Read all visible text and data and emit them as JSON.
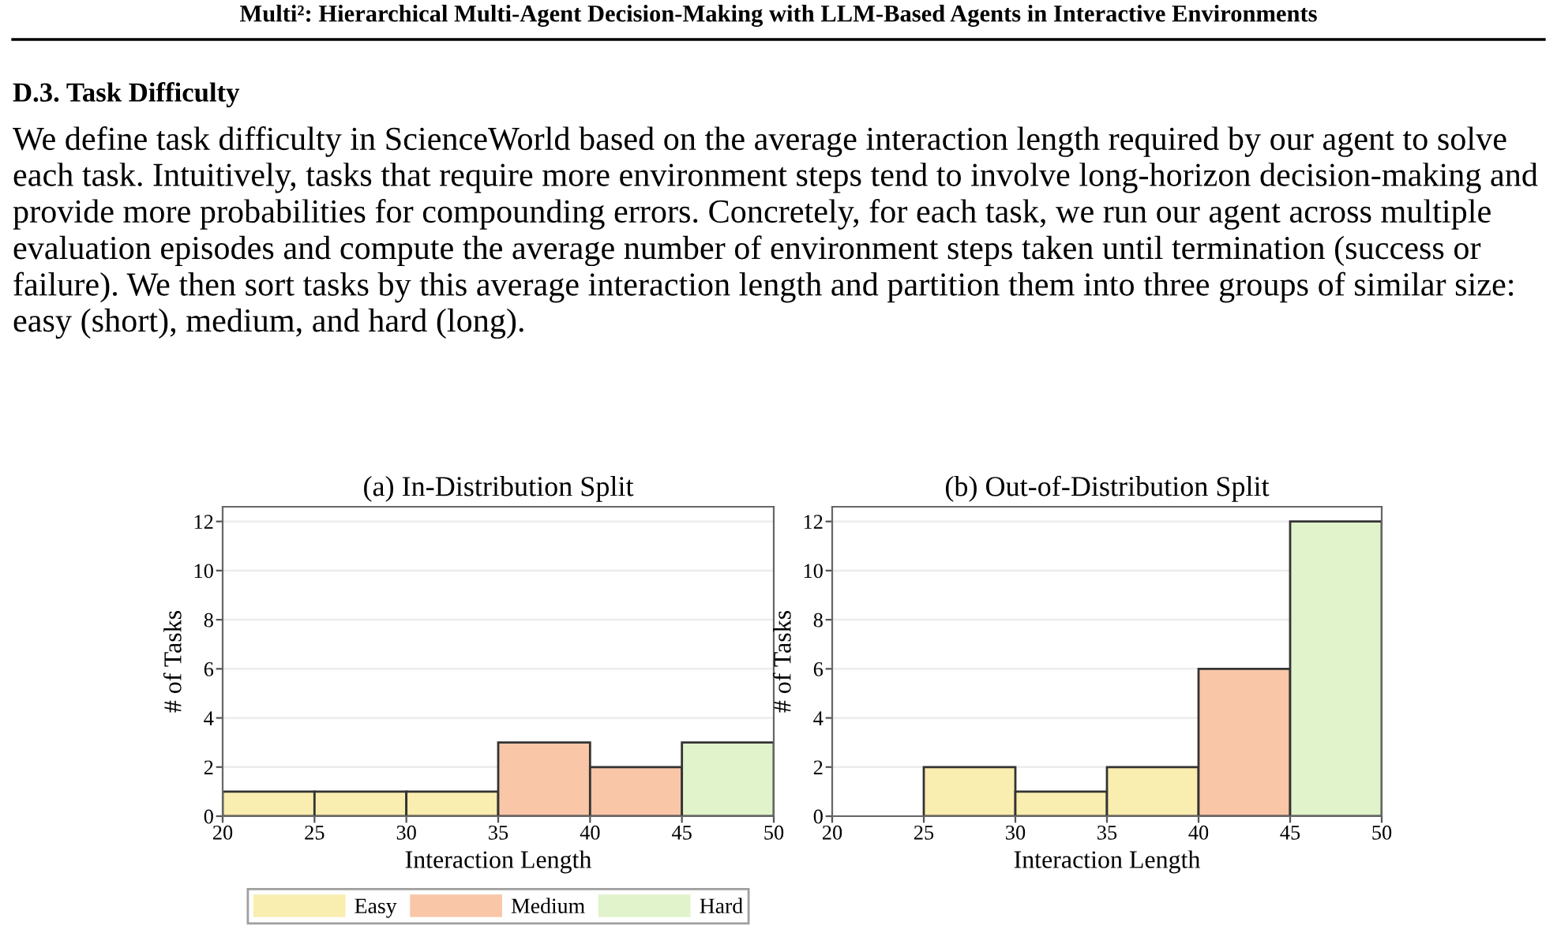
{
  "chart_data": [
    {
      "type": "histogram",
      "title": "(a) In-Distribution Split",
      "xlabel": "Interaction Length",
      "ylabel": "# of Tasks",
      "annotations": [
        "Multi²: Hierarchical Multi-Agent Decision-Making with LLM-Based Agents in Interactive Environments",
        "D.3. Task Difficulty",
        "We define task difficulty in ScienceWorld based on the average interaction length required by our agent to solve each task. Intuitively, tasks that require more environment steps tend to involve long-horizon decision-making and provide more probabilities for compounding errors. Concretely, for each task, we run our agent across multiple evaluation episodes and compute the average number of environment steps taken until termination (success or failure). We then sort tasks by this average interaction length and partition them into three groups of similar size: easy (short), medium, and hard (long)."
      ],
      "bins": [
        20,
        25,
        30,
        35,
        40,
        45,
        50
      ],
      "series": [
        {
          "name": "Easy",
          "color": "#faedb0",
          "values": [
            1,
            1,
            1,
            null,
            null,
            null
          ]
        },
        {
          "name": "Medium",
          "color": "#f9c6a8",
          "values": [
            null,
            null,
            null,
            3,
            2,
            null
          ]
        },
        {
          "name": "Hard",
          "color": "#e0f3cb",
          "values": [
            null,
            null,
            null,
            null,
            null,
            3
          ]
        }
      ],
      "xlim": [
        20,
        50
      ],
      "xticks": [
        20,
        25,
        30,
        35,
        40,
        45,
        50
      ],
      "ylim": [
        0,
        12.6
      ],
      "yticks": [
        0,
        2,
        4,
        6,
        8,
        10,
        12
      ],
      "grid": "y",
      "legend": "bottom"
    },
    {
      "type": "histogram",
      "title": "(b) Out-of-Distribution Split",
      "xlabel": "Interaction Length",
      "ylabel": "# of Tasks",
      "bins": [
        20,
        25,
        30,
        35,
        40,
        45,
        50
      ],
      "series": [
        {
          "color": "#faedb0",
          "values": [
            null,
            2,
            1,
            2,
            null,
            null
          ]
        },
        {
          "color": "#f9c6a8",
          "values": [
            null,
            null,
            null,
            null,
            6,
            null
          ]
        },
        {
          "color": "#e0f3cb",
          "values": [
            null,
            null,
            null,
            null,
            null,
            12
          ]
        }
      ],
      "xlim": [
        20,
        50
      ],
      "xticks": [
        20,
        25,
        30,
        35,
        40,
        45,
        50
      ],
      "ylim": [
        0,
        12.6
      ],
      "yticks": [
        0,
        2,
        4,
        6,
        8,
        10,
        12
      ],
      "grid": "y"
    }
  ]
}
